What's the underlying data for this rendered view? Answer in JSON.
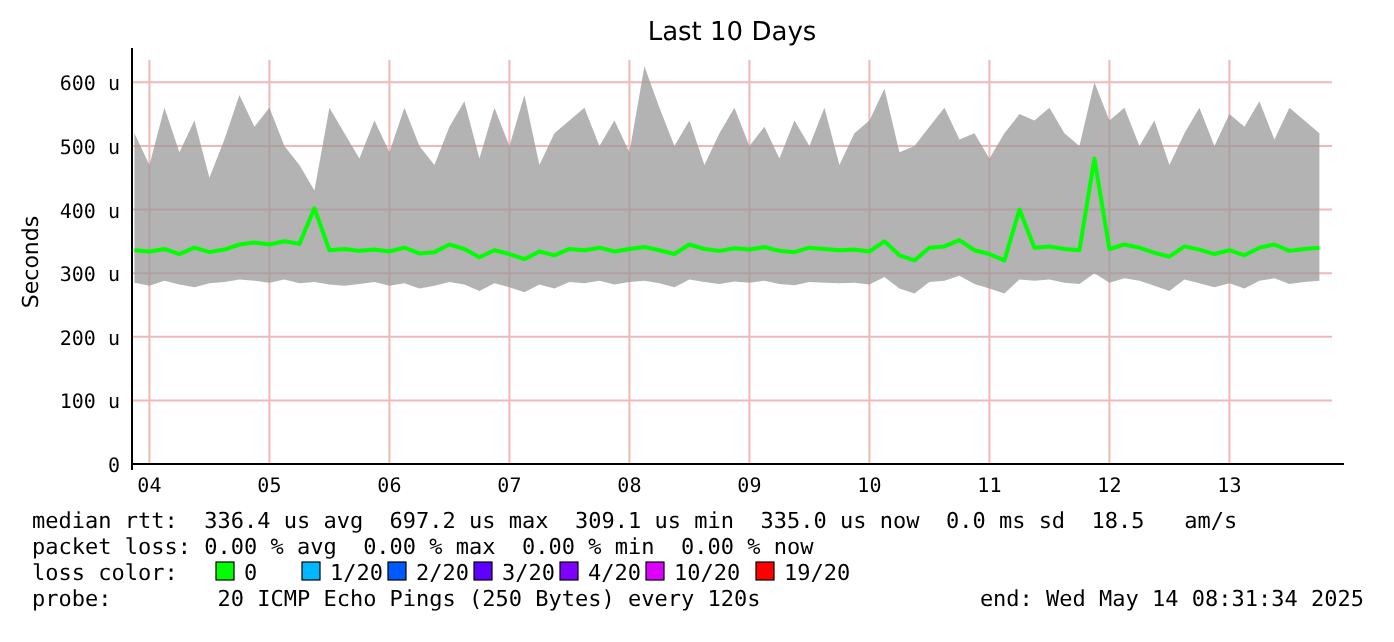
{
  "chart_data": {
    "type": "line",
    "title": "Last 10 Days",
    "ylabel": "Seconds",
    "xlim": [
      "2025-05-04T08:31",
      "2025-05-14T08:31"
    ],
    "xticks": [
      {
        "value": "2025-05-04T12:00",
        "label": "04"
      },
      {
        "value": "2025-05-05T12:00",
        "label": "05"
      },
      {
        "value": "2025-05-06T12:00",
        "label": "06"
      },
      {
        "value": "2025-05-07T12:00",
        "label": "07"
      },
      {
        "value": "2025-05-08T12:00",
        "label": "08"
      },
      {
        "value": "2025-05-09T12:00",
        "label": "09"
      },
      {
        "value": "2025-05-10T12:00",
        "label": "10"
      },
      {
        "value": "2025-05-11T12:00",
        "label": "11"
      },
      {
        "value": "2025-05-12T12:00",
        "label": "12"
      },
      {
        "value": "2025-05-13T12:00",
        "label": "13"
      }
    ],
    "ylim": [
      0,
      635
    ],
    "yticks": [
      0,
      {
        "value": 100,
        "label": "100 u"
      },
      {
        "value": 200,
        "label": "200 u"
      },
      {
        "value": 300,
        "label": "300 u"
      },
      {
        "value": 400,
        "label": "400 u"
      },
      {
        "value": 500,
        "label": "500 u"
      },
      {
        "value": 600,
        "label": "600 u"
      }
    ],
    "grid": true,
    "legend": "bottom",
    "legend_title": "loss color:",
    "series": [
      {
        "name": "0",
        "color": "#00ff00",
        "values": [
          336,
          334,
          338,
          330,
          340,
          333,
          337,
          345,
          348,
          345,
          350,
          346,
          402,
          336,
          338,
          335,
          337,
          334,
          340,
          331,
          333,
          345,
          338,
          325,
          336,
          330,
          322,
          334,
          328,
          338,
          336,
          340,
          334,
          338,
          341,
          336,
          330,
          345,
          338,
          335,
          339,
          337,
          341,
          335,
          333,
          340,
          338,
          336,
          337,
          334,
          350,
          328,
          320,
          340,
          342,
          352,
          336,
          330,
          320,
          400,
          340,
          342,
          338,
          336,
          480,
          338,
          345,
          340,
          332,
          326,
          342,
          337,
          330,
          336,
          328,
          340,
          345,
          335,
          338,
          340
        ],
        "lower": [
          285,
          280,
          288,
          282,
          278,
          284,
          286,
          290,
          288,
          285,
          290,
          284,
          286,
          282,
          280,
          283,
          286,
          280,
          284,
          276,
          280,
          286,
          282,
          272,
          284,
          278,
          270,
          282,
          276,
          286,
          284,
          288,
          282,
          286,
          288,
          284,
          278,
          290,
          286,
          283,
          287,
          285,
          288,
          283,
          281,
          286,
          285,
          284,
          285,
          282,
          294,
          276,
          268,
          286,
          288,
          296,
          283,
          276,
          268,
          290,
          288,
          290,
          285,
          283,
          300,
          285,
          292,
          288,
          280,
          272,
          290,
          284,
          278,
          284,
          276,
          288,
          292,
          283,
          286,
          288
        ],
        "upper": [
          520,
          470,
          560,
          490,
          540,
          450,
          510,
          580,
          530,
          560,
          500,
          470,
          430,
          560,
          520,
          480,
          540,
          490,
          560,
          500,
          470,
          530,
          570,
          480,
          560,
          500,
          580,
          470,
          520,
          540,
          560,
          500,
          540,
          490,
          625,
          560,
          500,
          540,
          470,
          520,
          560,
          500,
          530,
          480,
          540,
          500,
          560,
          470,
          520,
          540,
          590,
          490,
          500,
          530,
          560,
          510,
          520,
          480,
          520,
          550,
          540,
          560,
          520,
          500,
          600,
          540,
          560,
          500,
          540,
          470,
          520,
          560,
          500,
          550,
          530,
          570,
          510,
          560,
          540,
          520
        ]
      },
      {
        "name": "1/20",
        "color": "#00b8ff",
        "values": [
          null,
          null,
          null,
          null,
          null,
          null,
          null,
          null,
          null,
          null,
          null,
          null,
          null,
          null,
          null,
          null,
          null,
          null,
          null,
          null,
          null,
          null,
          null,
          null,
          null,
          null,
          null,
          null,
          null,
          null,
          null,
          null,
          null,
          null,
          null,
          null,
          null,
          null,
          null,
          null,
          null,
          null,
          null,
          null,
          null,
          null,
          null,
          null,
          null,
          null,
          null,
          null,
          null,
          null,
          null,
          null,
          null,
          null,
          null,
          null,
          null,
          null,
          null,
          null,
          null,
          null,
          null,
          null,
          null,
          null,
          null,
          null,
          null,
          null,
          null,
          null,
          null,
          null,
          null,
          null
        ]
      },
      {
        "name": "2/20",
        "color": "#0059ff",
        "values": [
          null,
          null,
          null,
          null,
          null,
          null,
          null,
          null,
          null,
          null,
          null,
          null,
          null,
          null,
          null,
          null,
          null,
          null,
          null,
          null,
          null,
          null,
          null,
          null,
          null,
          null,
          null,
          null,
          null,
          null,
          null,
          null,
          null,
          null,
          null,
          null,
          null,
          null,
          null,
          null,
          null,
          null,
          null,
          null,
          null,
          null,
          null,
          null,
          null,
          null,
          null,
          null,
          null,
          null,
          null,
          null,
          null,
          null,
          null,
          null,
          null,
          null,
          null,
          null,
          null,
          null,
          null,
          null,
          null,
          null,
          null,
          null,
          null,
          null,
          null,
          null,
          null,
          null,
          null,
          null
        ]
      },
      {
        "name": "3/20",
        "color": "#5e00ff",
        "values": [
          null,
          null,
          null,
          null,
          null,
          null,
          null,
          null,
          null,
          null,
          null,
          null,
          null,
          null,
          null,
          null,
          null,
          null,
          null,
          null,
          null,
          null,
          null,
          null,
          null,
          null,
          null,
          null,
          null,
          null,
          null,
          null,
          null,
          null,
          null,
          null,
          null,
          null,
          null,
          null,
          null,
          null,
          null,
          null,
          null,
          null,
          null,
          null,
          null,
          null,
          null,
          null,
          null,
          null,
          null,
          null,
          null,
          null,
          null,
          null,
          null,
          null,
          null,
          null,
          null,
          null,
          null,
          null,
          null,
          null,
          null,
          null,
          null,
          null,
          null,
          null,
          null,
          null,
          null,
          null
        ]
      },
      {
        "name": "4/20",
        "color": "#7e00ff",
        "values": [
          null,
          null,
          null,
          null,
          null,
          null,
          null,
          null,
          null,
          null,
          null,
          null,
          null,
          null,
          null,
          null,
          null,
          null,
          null,
          null,
          null,
          null,
          null,
          null,
          null,
          null,
          null,
          null,
          null,
          null,
          null,
          null,
          null,
          null,
          null,
          null,
          null,
          null,
          null,
          null,
          null,
          null,
          null,
          null,
          null,
          null,
          null,
          null,
          null,
          null,
          null,
          null,
          null,
          null,
          null,
          null,
          null,
          null,
          null,
          null,
          null,
          null,
          null,
          null,
          null,
          null,
          null,
          null,
          null,
          null,
          null,
          null,
          null,
          null,
          null,
          null,
          null,
          null,
          null,
          null
        ]
      },
      {
        "name": "10/20",
        "color": "#dd00ff",
        "values": [
          null,
          null,
          null,
          null,
          null,
          null,
          null,
          null,
          null,
          null,
          null,
          null,
          null,
          null,
          null,
          null,
          null,
          null,
          null,
          null,
          null,
          null,
          null,
          null,
          null,
          null,
          null,
          null,
          null,
          null,
          null,
          null,
          null,
          null,
          null,
          null,
          null,
          null,
          null,
          null,
          null,
          null,
          null,
          null,
          null,
          null,
          null,
          null,
          null,
          null,
          null,
          null,
          null,
          null,
          null,
          null,
          null,
          null,
          null,
          null,
          null,
          null,
          null,
          null,
          null,
          null,
          null,
          null,
          null,
          null,
          null,
          null,
          null,
          null,
          null,
          null,
          null,
          null,
          null,
          null
        ]
      },
      {
        "name": "19/20",
        "color": "#ff0000",
        "values": [
          null,
          null,
          null,
          null,
          null,
          null,
          null,
          null,
          null,
          null,
          null,
          null,
          null,
          null,
          null,
          null,
          null,
          null,
          null,
          null,
          null,
          null,
          null,
          null,
          null,
          null,
          null,
          null,
          null,
          null,
          null,
          null,
          null,
          null,
          null,
          null,
          null,
          null,
          null,
          null,
          null,
          null,
          null,
          null,
          null,
          null,
          null,
          null,
          null,
          null,
          null,
          null,
          null,
          null,
          null,
          null,
          null,
          null,
          null,
          null,
          null,
          null,
          null,
          null,
          null,
          null,
          null,
          null,
          null,
          null,
          null,
          null,
          null,
          null,
          null,
          null,
          null,
          null,
          null,
          null
        ]
      }
    ],
    "x": [
      "2025-05-04T09:00",
      "2025-05-04T12:00",
      "2025-05-04T15:00",
      "2025-05-04T18:00",
      "2025-05-04T21:00",
      "2025-05-05T00:00",
      "2025-05-05T03:00",
      "2025-05-05T06:00",
      "2025-05-05T09:00",
      "2025-05-05T12:00",
      "2025-05-05T15:00",
      "2025-05-05T18:00",
      "2025-05-05T21:00",
      "2025-05-06T00:00",
      "2025-05-06T03:00",
      "2025-05-06T06:00",
      "2025-05-06T09:00",
      "2025-05-06T12:00",
      "2025-05-06T15:00",
      "2025-05-06T18:00",
      "2025-05-06T21:00",
      "2025-05-07T00:00",
      "2025-05-07T03:00",
      "2025-05-07T06:00",
      "2025-05-07T09:00",
      "2025-05-07T12:00",
      "2025-05-07T15:00",
      "2025-05-07T18:00",
      "2025-05-07T21:00",
      "2025-05-08T00:00",
      "2025-05-08T03:00",
      "2025-05-08T06:00",
      "2025-05-08T09:00",
      "2025-05-08T12:00",
      "2025-05-08T15:00",
      "2025-05-08T18:00",
      "2025-05-08T21:00",
      "2025-05-09T00:00",
      "2025-05-09T03:00",
      "2025-05-09T06:00",
      "2025-05-09T09:00",
      "2025-05-09T12:00",
      "2025-05-09T15:00",
      "2025-05-09T18:00",
      "2025-05-09T21:00",
      "2025-05-10T00:00",
      "2025-05-10T03:00",
      "2025-05-10T06:00",
      "2025-05-10T09:00",
      "2025-05-10T12:00",
      "2025-05-10T15:00",
      "2025-05-10T18:00",
      "2025-05-10T21:00",
      "2025-05-11T00:00",
      "2025-05-11T03:00",
      "2025-05-11T06:00",
      "2025-05-11T09:00",
      "2025-05-11T12:00",
      "2025-05-11T15:00",
      "2025-05-11T18:00",
      "2025-05-11T21:00",
      "2025-05-12T00:00",
      "2025-05-12T03:00",
      "2025-05-12T06:00",
      "2025-05-12T09:00",
      "2025-05-12T12:00",
      "2025-05-12T15:00",
      "2025-05-12T18:00",
      "2025-05-12T21:00",
      "2025-05-13T00:00",
      "2025-05-13T03:00",
      "2025-05-13T06:00",
      "2025-05-13T09:00",
      "2025-05-13T12:00",
      "2025-05-13T15:00",
      "2025-05-13T18:00",
      "2025-05-13T21:00",
      "2025-05-14T00:00",
      "2025-05-14T03:00",
      "2025-05-14T06:00"
    ],
    "annotations": [
      "median rtt:  336.4 us avg  697.2 us max  309.1 us min  335.0 us now  0.0 ms sd  18.5   am/s",
      "packet loss: 0.00 % avg  0.00 % max  0.00 % min  0.00 % now",
      "probe:        20 ICMP Echo Pings (250 Bytes) every 120s",
      "end: Wed May 14 08:31:34 2025"
    ]
  }
}
